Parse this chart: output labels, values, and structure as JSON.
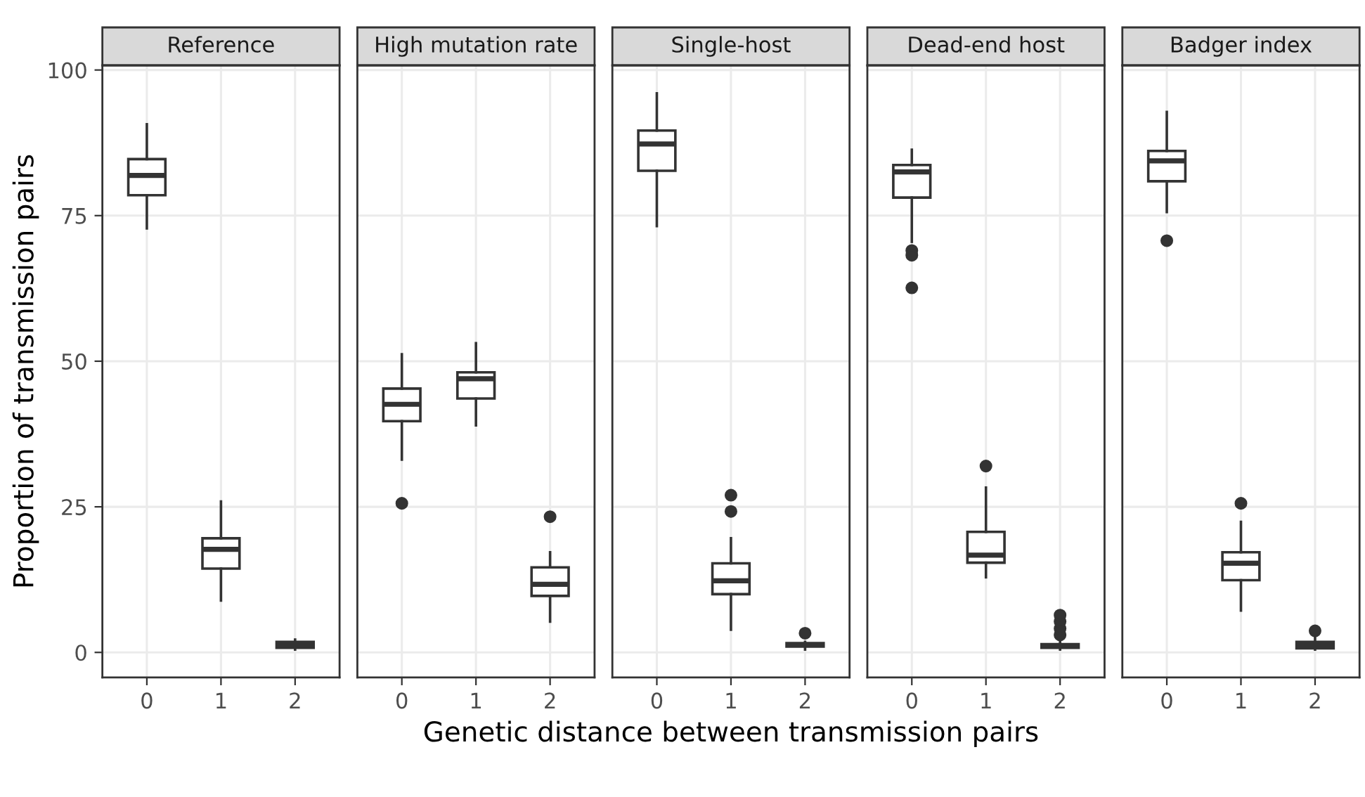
{
  "chart_data": [
    {
      "type": "box",
      "title": "Reference",
      "ylabel": "Proportion of transmission pairs",
      "categories": [
        "0",
        "1",
        "2"
      ],
      "ylim": [
        -4.3,
        100.8
      ],
      "yticks": [
        0,
        25,
        50,
        75,
        100
      ],
      "grid": true,
      "boxes": [
        {
          "low": 72.8,
          "q1": 78.5,
          "median": 81.9,
          "q3": 84.7,
          "high": 90.7
        },
        {
          "low": 8.9,
          "q1": 14.4,
          "median": 17.7,
          "q3": 19.6,
          "high": 25.9
        },
        {
          "low": 0.5,
          "q1": 0.8,
          "median": 1.3,
          "q3": 1.8,
          "high": 2.2
        }
      ]
    },
    {
      "type": "box",
      "title": "High mutation rate",
      "categories": [
        "0",
        "1",
        "2"
      ],
      "ylim": [
        -4.3,
        100.8
      ],
      "yticks": [
        0,
        25,
        50,
        75,
        100
      ],
      "grid": true,
      "tick_labels": "x",
      "boxes": [
        {
          "low": 33.1,
          "q1": 39.7,
          "median": 42.6,
          "q3": 45.3,
          "high": 51.2,
          "outliers": [
            25.6
          ]
        },
        {
          "low": 39.0,
          "q1": 43.6,
          "median": 47.0,
          "q3": 48.1,
          "high": 53.1
        },
        {
          "low": 5.3,
          "q1": 9.7,
          "median": 11.7,
          "q3": 14.6,
          "high": 17.2,
          "outliers": [
            23.3
          ]
        }
      ]
    },
    {
      "type": "box",
      "title": "Single-host",
      "xlabel": "Genetic distance between transmission pairs",
      "categories": [
        "0",
        "1",
        "2"
      ],
      "ylim": [
        -4.3,
        100.8
      ],
      "yticks": [
        0,
        25,
        50,
        75,
        100
      ],
      "grid": true,
      "tick_labels": "x",
      "boxes": [
        {
          "low": 73.2,
          "q1": 82.7,
          "median": 87.3,
          "q3": 89.6,
          "high": 96.0
        },
        {
          "low": 3.9,
          "q1": 10.0,
          "median": 12.3,
          "q3": 15.3,
          "high": 19.6,
          "outliers": [
            24.2,
            27.0
          ]
        },
        {
          "low": 0.5,
          "q1": 1.0,
          "median": 1.3,
          "q3": 1.6,
          "high": 1.8,
          "outliers": [
            3.3
          ]
        }
      ]
    },
    {
      "type": "box",
      "title": "Dead-end host",
      "categories": [
        "0",
        "1",
        "2"
      ],
      "ylim": [
        -4.3,
        100.8
      ],
      "yticks": [
        0,
        25,
        50,
        75,
        100
      ],
      "grid": true,
      "tick_labels": "x",
      "boxes": [
        {
          "low": 70.5,
          "q1": 78.1,
          "median": 82.5,
          "q3": 83.7,
          "high": 86.3,
          "outliers": [
            69.0,
            68.2,
            62.6
          ]
        },
        {
          "low": 12.9,
          "q1": 15.4,
          "median": 16.7,
          "q3": 20.7,
          "high": 28.3,
          "outliers": [
            32.0
          ]
        },
        {
          "low": 0.5,
          "q1": 0.8,
          "median": 1.1,
          "q3": 1.4,
          "high": 2.0,
          "outliers": [
            3.0,
            4.1,
            5.3,
            6.4
          ]
        }
      ]
    },
    {
      "type": "box",
      "title": "Badger index",
      "categories": [
        "0",
        "1",
        "2"
      ],
      "ylim": [
        -4.3,
        100.8
      ],
      "yticks": [
        0,
        25,
        50,
        75,
        100
      ],
      "grid": true,
      "tick_labels": "x",
      "boxes": [
        {
          "low": 75.6,
          "q1": 80.9,
          "median": 84.4,
          "q3": 86.1,
          "high": 92.8,
          "outliers": [
            70.7
          ]
        },
        {
          "low": 7.2,
          "q1": 12.4,
          "median": 15.3,
          "q3": 17.2,
          "high": 22.4,
          "outliers": [
            25.6
          ]
        },
        {
          "low": 0.5,
          "q1": 0.7,
          "median": 1.3,
          "q3": 1.8,
          "high": 2.6,
          "outliers": [
            3.7
          ]
        }
      ]
    }
  ]
}
